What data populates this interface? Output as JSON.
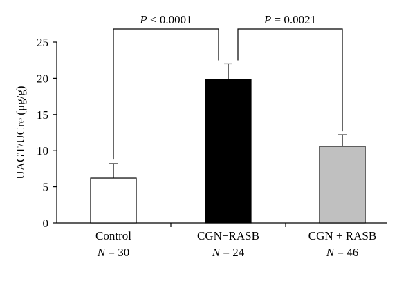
{
  "chart_data": {
    "type": "bar",
    "ylabel": "UAGT/UCre (μg/g)",
    "ylim": [
      0,
      25
    ],
    "yticks": [
      0,
      5,
      10,
      15,
      20,
      25
    ],
    "categories": [
      {
        "name": "Control",
        "n_label": "N = 30"
      },
      {
        "name": "CGN−RASB",
        "n_label": "N = 24"
      },
      {
        "name": "CGN + RASB",
        "n_label": "N = 46"
      }
    ],
    "values": [
      6.2,
      19.8,
      10.6
    ],
    "error_upper": [
      8.2,
      22.0,
      12.2
    ],
    "bar_colors": [
      "#ffffff",
      "#000000",
      "#c0c0c0"
    ],
    "comparisons": [
      {
        "from": 0,
        "to": 1,
        "label": "P < 0.0001"
      },
      {
        "from": 1,
        "to": 2,
        "label": "P = 0.0021"
      }
    ]
  }
}
